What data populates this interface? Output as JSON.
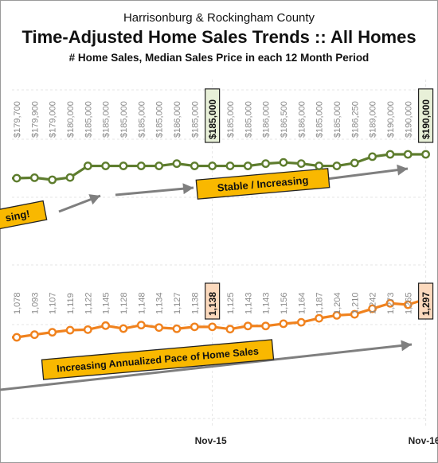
{
  "header": {
    "supertitle": "Harrisonburg & Rockingham County",
    "title": "Time-Adjusted Home Sales Trends  ::  All Homes",
    "subtitle": "# Home Sales, Median Sales Price in each 12 Month Period"
  },
  "chart_data": {
    "type": "line",
    "x": [
      "",
      "",
      "",
      "",
      "",
      "",
      "",
      "",
      "",
      "",
      "",
      "",
      "",
      "",
      "",
      "",
      "",
      "",
      "",
      "",
      "",
      "",
      "",
      "Nov-15",
      "",
      "",
      "",
      "",
      "",
      "",
      "",
      "",
      "",
      "",
      "",
      "Nov-16"
    ],
    "x_tick_labels": [
      "Nov-15",
      "Nov-16"
    ],
    "x_visible_start_index": 12,
    "series": [
      {
        "color": "#5e7d2e",
        "values": [
          null,
          null,
          null,
          null,
          null,
          null,
          null,
          null,
          null,
          null,
          null,
          null,
          179700,
          179900,
          179000,
          180000,
          185000,
          185000,
          185000,
          185000,
          185000,
          186000,
          185000,
          185000,
          185000,
          185000,
          186000,
          186500,
          186000,
          185000,
          185000,
          186250,
          189000,
          190000,
          190000,
          190000
        ],
        "labels": [
          "",
          "",
          "",
          "",
          "",
          "",
          "",
          "",
          "",
          "",
          "",
          "",
          "$179,700",
          "$179,900",
          "$179,000",
          "$180,000",
          "$185,000",
          "$185,000",
          "$185,000",
          "$185,000",
          "$185,000",
          "$186,000",
          "$185,000",
          "$185,000",
          "$185,000",
          "$185,000",
          "$186,000",
          "$186,500",
          "$186,000",
          "$185,000",
          "$185,000",
          "$186,250",
          "$189,000",
          "$190,000",
          "$190,000",
          "$190,000"
        ],
        "highlight_indices": [
          23,
          35
        ]
      },
      {
        "color": "#f0821e",
        "values": [
          null,
          null,
          null,
          null,
          null,
          null,
          null,
          null,
          null,
          null,
          null,
          null,
          1078,
          1093,
          1107,
          1119,
          1122,
          1145,
          1128,
          1148,
          1134,
          1127,
          1138,
          1138,
          1125,
          1143,
          1143,
          1156,
          1164,
          1187,
          1204,
          1210,
          1242,
          1273,
          1265,
          1297
        ],
        "labels": [
          "",
          "",
          "",
          "",
          "",
          "",
          "",
          "",
          "",
          "",
          "",
          "",
          "1,078",
          "1,093",
          "1,107",
          "1,119",
          "1,122",
          "1,145",
          "1,128",
          "1,148",
          "1,134",
          "1,127",
          "1,138",
          "1,138",
          "1,125",
          "1,143",
          "1,143",
          "1,156",
          "1,164",
          "1,187",
          "1,204",
          "1,210",
          "1,242",
          "1,273",
          "1,265",
          "1,297"
        ],
        "highlight_indices": [
          23,
          35
        ]
      }
    ],
    "annotations": [
      {
        "text": "sing!",
        "bg": "#f9b800"
      },
      {
        "text": "Stable / Increasing",
        "bg": "#f9b800"
      },
      {
        "text": "Increasing Annualized Pace of Home Sales",
        "bg": "#f9b800"
      }
    ],
    "grid": "dashed horizontal + vertical year lines",
    "legend": "none"
  }
}
